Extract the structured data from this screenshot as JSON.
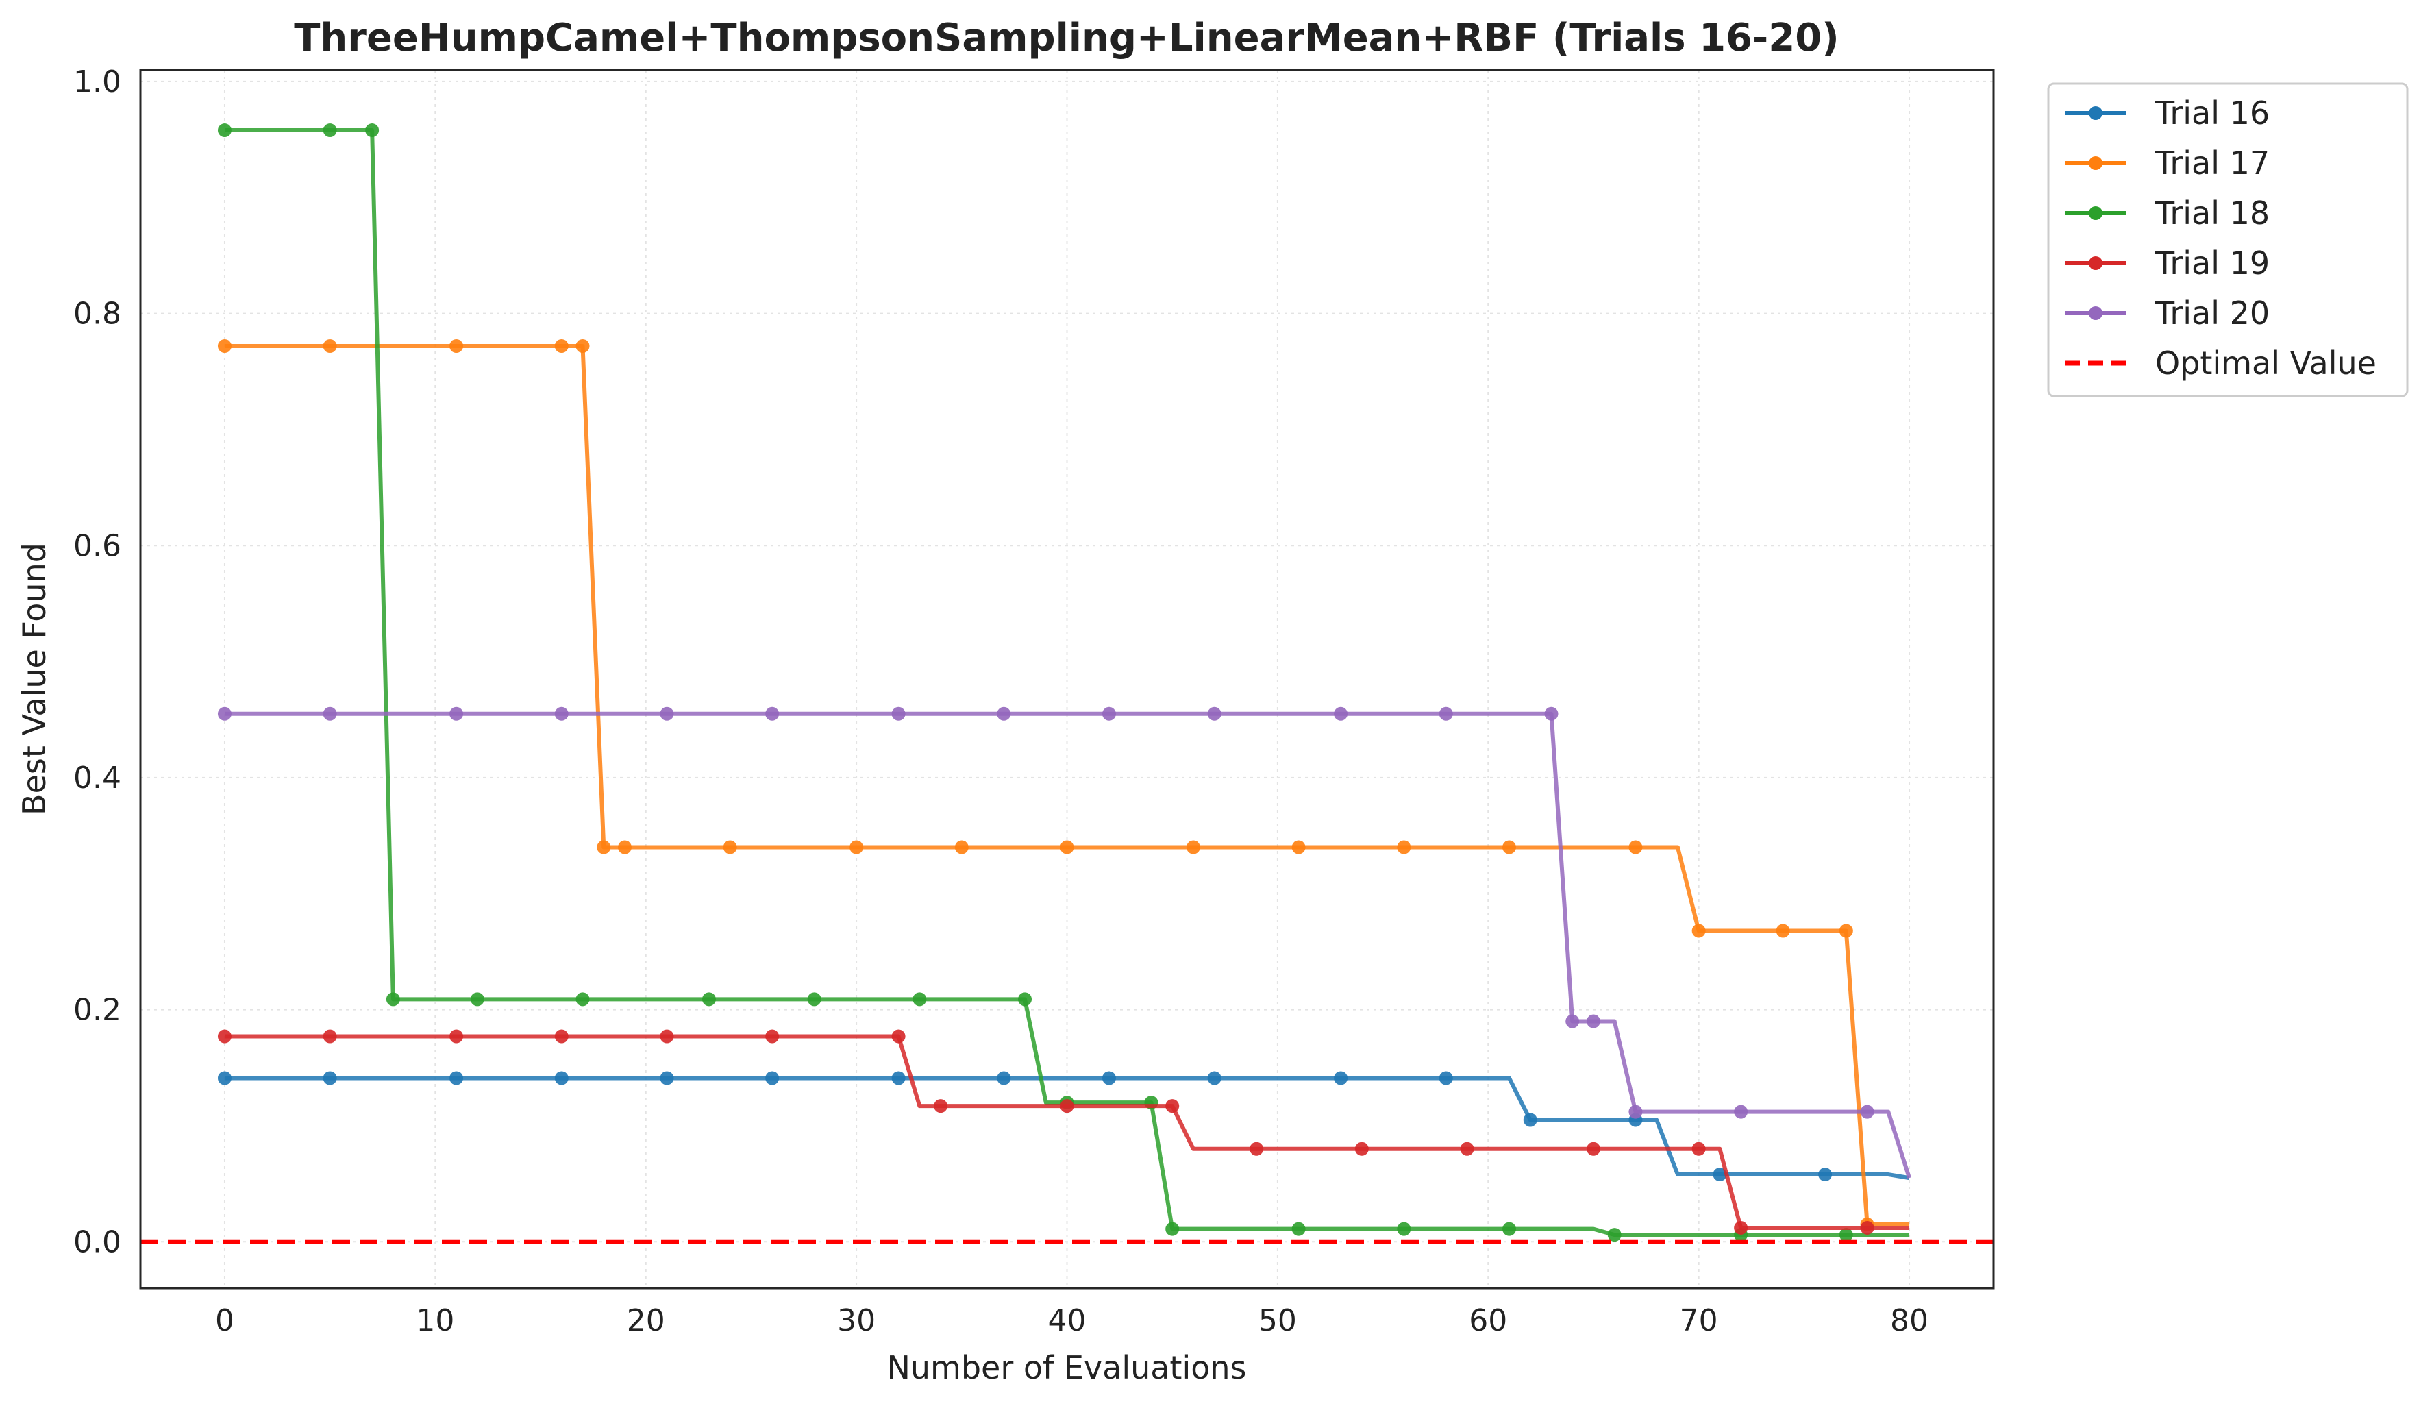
{
  "chart_data": {
    "type": "line",
    "title": "ThreeHumpCamel+ThompsonSampling+LinearMean+RBF (Trials 16-20)",
    "xlabel": "Number of Evaluations",
    "ylabel": "Best Value Found",
    "xlim": [
      -4,
      84
    ],
    "ylim": [
      -0.04,
      1.01
    ],
    "xticks": [
      0,
      10,
      20,
      30,
      40,
      50,
      60,
      70,
      80
    ],
    "yticks": [
      0.0,
      0.2,
      0.4,
      0.6,
      0.8,
      1.0
    ],
    "xtick_labels": [
      "0",
      "10",
      "20",
      "30",
      "40",
      "50",
      "60",
      "70",
      "80"
    ],
    "ytick_labels": [
      "0.0",
      "0.2",
      "0.4",
      "0.6",
      "0.8",
      "1.0"
    ],
    "grid": true,
    "legend_position": "outside-top-right",
    "series": [
      {
        "name": "Trial 16",
        "color": "#1f77b4",
        "steps": [
          [
            0,
            0.141
          ],
          [
            62,
            0.105
          ],
          [
            69,
            0.058
          ],
          [
            80,
            0.055
          ]
        ],
        "markers": [
          [
            0,
            0.141
          ],
          [
            5,
            0.141
          ],
          [
            11,
            0.141
          ],
          [
            16,
            0.141
          ],
          [
            21,
            0.141
          ],
          [
            26,
            0.141
          ],
          [
            32,
            0.141
          ],
          [
            37,
            0.141
          ],
          [
            42,
            0.141
          ],
          [
            47,
            0.141
          ],
          [
            53,
            0.141
          ],
          [
            58,
            0.141
          ],
          [
            62,
            0.105
          ],
          [
            67,
            0.105
          ],
          [
            71,
            0.058
          ],
          [
            76,
            0.058
          ]
        ]
      },
      {
        "name": "Trial 17",
        "color": "#ff7f0e",
        "steps": [
          [
            0,
            0.772
          ],
          [
            18,
            0.34
          ],
          [
            70,
            0.268
          ],
          [
            78,
            0.015
          ],
          [
            80,
            0.015
          ]
        ],
        "markers": [
          [
            0,
            0.772
          ],
          [
            5,
            0.772
          ],
          [
            11,
            0.772
          ],
          [
            16,
            0.772
          ],
          [
            17,
            0.772
          ],
          [
            18,
            0.34
          ],
          [
            19,
            0.34
          ],
          [
            24,
            0.34
          ],
          [
            30,
            0.34
          ],
          [
            35,
            0.34
          ],
          [
            40,
            0.34
          ],
          [
            46,
            0.34
          ],
          [
            51,
            0.34
          ],
          [
            56,
            0.34
          ],
          [
            61,
            0.34
          ],
          [
            67,
            0.34
          ],
          [
            70,
            0.268
          ],
          [
            74,
            0.268
          ],
          [
            77,
            0.268
          ],
          [
            78,
            0.015
          ]
        ]
      },
      {
        "name": "Trial 18",
        "color": "#2ca02c",
        "steps": [
          [
            0,
            0.958
          ],
          [
            8,
            0.209
          ],
          [
            39,
            0.12
          ],
          [
            45,
            0.011
          ],
          [
            66,
            0.006
          ],
          [
            80,
            0.006
          ]
        ],
        "markers": [
          [
            0,
            0.958
          ],
          [
            5,
            0.958
          ],
          [
            7,
            0.958
          ],
          [
            8,
            0.209
          ],
          [
            12,
            0.209
          ],
          [
            17,
            0.209
          ],
          [
            23,
            0.209
          ],
          [
            28,
            0.209
          ],
          [
            33,
            0.209
          ],
          [
            38,
            0.209
          ],
          [
            40,
            0.12
          ],
          [
            44,
            0.12
          ],
          [
            45,
            0.011
          ],
          [
            51,
            0.011
          ],
          [
            56,
            0.011
          ],
          [
            61,
            0.011
          ],
          [
            66,
            0.006
          ],
          [
            72,
            0.006
          ],
          [
            77,
            0.006
          ]
        ]
      },
      {
        "name": "Trial 19",
        "color": "#d62728",
        "steps": [
          [
            0,
            0.177
          ],
          [
            33,
            0.117
          ],
          [
            46,
            0.08
          ],
          [
            72,
            0.012
          ],
          [
            80,
            0.012
          ]
        ],
        "markers": [
          [
            0,
            0.177
          ],
          [
            5,
            0.177
          ],
          [
            11,
            0.177
          ],
          [
            16,
            0.177
          ],
          [
            21,
            0.177
          ],
          [
            26,
            0.177
          ],
          [
            32,
            0.177
          ],
          [
            34,
            0.117
          ],
          [
            40,
            0.117
          ],
          [
            45,
            0.117
          ],
          [
            49,
            0.08
          ],
          [
            54,
            0.08
          ],
          [
            59,
            0.08
          ],
          [
            65,
            0.08
          ],
          [
            70,
            0.08
          ],
          [
            72,
            0.012
          ],
          [
            78,
            0.012
          ]
        ]
      },
      {
        "name": "Trial 20",
        "color": "#9467bd",
        "steps": [
          [
            0,
            0.455
          ],
          [
            64,
            0.19
          ],
          [
            67,
            0.112
          ],
          [
            80,
            0.055
          ]
        ],
        "markers": [
          [
            0,
            0.455
          ],
          [
            5,
            0.455
          ],
          [
            11,
            0.455
          ],
          [
            16,
            0.455
          ],
          [
            21,
            0.455
          ],
          [
            26,
            0.455
          ],
          [
            32,
            0.455
          ],
          [
            37,
            0.455
          ],
          [
            42,
            0.455
          ],
          [
            47,
            0.455
          ],
          [
            53,
            0.455
          ],
          [
            58,
            0.455
          ],
          [
            63,
            0.455
          ],
          [
            64,
            0.19
          ],
          [
            65,
            0.19
          ],
          [
            67,
            0.112
          ],
          [
            72,
            0.112
          ],
          [
            78,
            0.112
          ]
        ]
      }
    ],
    "reference_line": {
      "name": "Optimal Value",
      "y": 0.0,
      "color": "#ff0000",
      "style": "dashed"
    }
  }
}
